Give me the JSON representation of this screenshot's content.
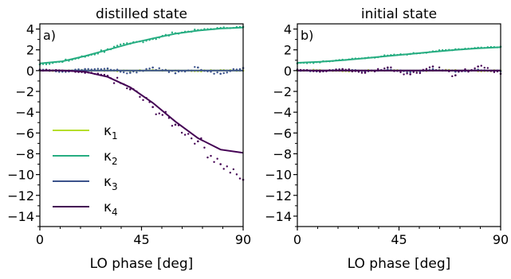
{
  "chart_data": [
    {
      "type": "line",
      "title": "distilled state",
      "panel_label": "a)",
      "xlabel": "LO phase [deg]",
      "ylabel": "",
      "xlim": [
        0,
        90
      ],
      "ylim": [
        -15,
        4.5
      ],
      "xticks": [
        0,
        45,
        90
      ],
      "yticks": [
        4,
        2,
        0,
        -2,
        -4,
        -6,
        -8,
        -10,
        -12,
        -14
      ],
      "legend": {
        "placement": "lower-left",
        "entries": [
          "κ1",
          "κ2",
          "κ3",
          "κ4"
        ]
      },
      "series": [
        {
          "name": "κ1",
          "color": "#b5de2b",
          "x": [
            0,
            10,
            20,
            30,
            40,
            50,
            60,
            70,
            80,
            90
          ],
          "fit": [
            0,
            0,
            0,
            0,
            0,
            0,
            0,
            0,
            0,
            0
          ],
          "scatter": [
            0.05,
            -0.05,
            0.05,
            0.0,
            -0.05,
            0.05,
            0.0,
            -0.05,
            0.05,
            0.0
          ]
        },
        {
          "name": "κ2",
          "color": "#26ad81",
          "x": [
            0,
            10,
            20,
            30,
            40,
            50,
            60,
            70,
            80,
            90
          ],
          "fit": [
            0.7,
            0.9,
            1.4,
            2.0,
            2.6,
            3.1,
            3.55,
            3.85,
            4.05,
            4.15
          ],
          "scatter": [
            0.6,
            0.85,
            1.35,
            2.05,
            2.6,
            3.05,
            3.6,
            3.9,
            4.1,
            4.2
          ]
        },
        {
          "name": "κ3",
          "color": "#3b528b",
          "x": [
            0,
            10,
            20,
            30,
            40,
            50,
            60,
            70,
            80,
            90
          ],
          "fit": [
            0,
            0,
            0,
            0,
            0,
            0,
            0,
            0,
            0,
            0
          ],
          "scatter": [
            0.1,
            -0.1,
            0.15,
            0.2,
            -0.2,
            0.3,
            -0.25,
            0.3,
            -0.3,
            0.25
          ]
        },
        {
          "name": "κ4",
          "color": "#440154",
          "x": [
            0,
            10,
            20,
            30,
            40,
            50,
            60,
            70,
            80,
            90
          ],
          "fit": [
            0,
            0,
            -0.1,
            -0.6,
            -1.6,
            -3.1,
            -4.9,
            -6.5,
            -7.6,
            -7.9
          ],
          "scatter": [
            0.05,
            0.0,
            -0.2,
            -0.5,
            -1.8,
            -3.5,
            -5.2,
            -6.8,
            -9.0,
            -10.5
          ]
        }
      ]
    },
    {
      "type": "line",
      "title": "initial state",
      "panel_label": "b)",
      "xlabel": "LO phase [deg]",
      "ylabel": "",
      "xlim": [
        0,
        90
      ],
      "ylim": [
        -15,
        4.5
      ],
      "xticks": [
        0,
        45,
        90
      ],
      "yticks": [
        4,
        2,
        0,
        -2,
        -4,
        -6,
        -8,
        -10,
        -12,
        -14
      ],
      "series": [
        {
          "name": "κ1",
          "color": "#b5de2b",
          "x": [
            0,
            10,
            20,
            30,
            40,
            50,
            60,
            70,
            80,
            90
          ],
          "fit": [
            0,
            0,
            0,
            0,
            0,
            0,
            0,
            0,
            0,
            0
          ],
          "scatter": [
            0.0,
            0.05,
            -0.05,
            0.0,
            0.05,
            -0.05,
            0.0,
            0.05,
            -0.05,
            0.0
          ]
        },
        {
          "name": "κ2",
          "color": "#26ad81",
          "x": [
            0,
            10,
            20,
            30,
            40,
            50,
            60,
            70,
            80,
            90
          ],
          "fit": [
            0.75,
            0.85,
            1.0,
            1.2,
            1.4,
            1.6,
            1.8,
            2.0,
            2.15,
            2.25
          ],
          "scatter": [
            0.7,
            0.8,
            1.05,
            1.2,
            1.45,
            1.6,
            1.85,
            2.05,
            2.2,
            2.3
          ]
        },
        {
          "name": "κ3",
          "color": "#3b528b",
          "x": [
            0,
            10,
            20,
            30,
            40,
            50,
            60,
            70,
            80,
            90
          ],
          "fit": [
            0,
            0,
            0,
            0,
            0,
            0,
            0,
            0,
            0,
            0
          ],
          "scatter": [
            0.05,
            -0.05,
            0.1,
            -0.1,
            0.1,
            -0.15,
            0.15,
            -0.1,
            0.1,
            -0.05
          ]
        },
        {
          "name": "κ4",
          "color": "#440154",
          "x": [
            0,
            10,
            20,
            30,
            40,
            50,
            60,
            70,
            80,
            90
          ],
          "fit": [
            0,
            0,
            0,
            0,
            0,
            0,
            0,
            0,
            0,
            0
          ],
          "scatter": [
            0.1,
            -0.1,
            0.15,
            -0.2,
            0.3,
            -0.35,
            0.4,
            -0.45,
            0.4,
            -0.3
          ]
        }
      ]
    }
  ]
}
